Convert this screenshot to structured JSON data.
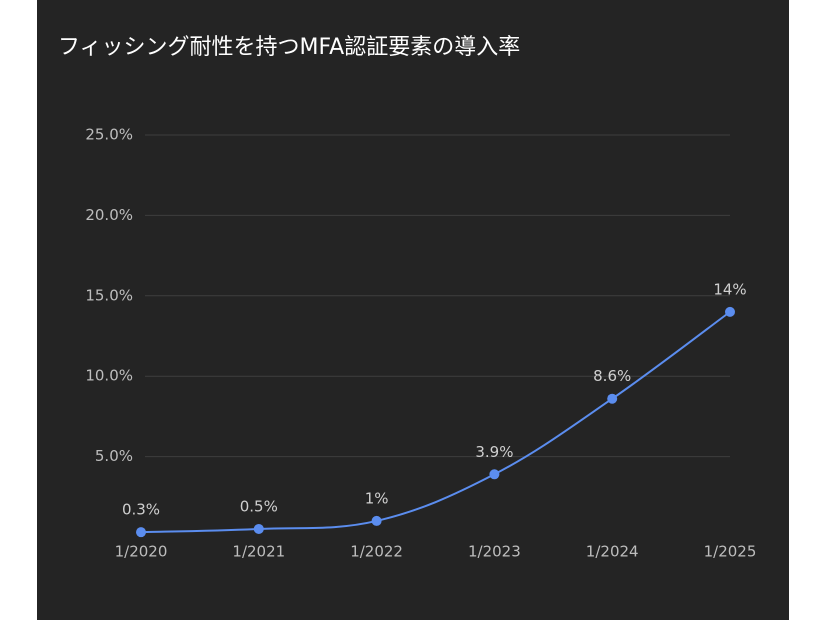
{
  "chart_data": {
    "type": "line",
    "title": "フィッシング耐性を持つMFA認証要素の導入率",
    "categories": [
      "1/2020",
      "1/2021",
      "1/2022",
      "1/2023",
      "1/2024",
      "1/2025"
    ],
    "series": [
      {
        "color": "#5b8def",
        "values": [
          0.3,
          0.5,
          1,
          3.9,
          8.6,
          14
        ],
        "value_labels": [
          "0.3%",
          "0.5%",
          "1%",
          "3.9%",
          "8.6%",
          "14%"
        ]
      }
    ],
    "ylim": [
      0,
      25
    ],
    "yticks": [
      {
        "value": 5,
        "label": "5.0%"
      },
      {
        "value": 10,
        "label": "10.0%"
      },
      {
        "value": 15,
        "label": "15.0%"
      },
      {
        "value": 20,
        "label": "20.0%"
      },
      {
        "value": 25,
        "label": "25.0%"
      }
    ],
    "grid": true
  }
}
